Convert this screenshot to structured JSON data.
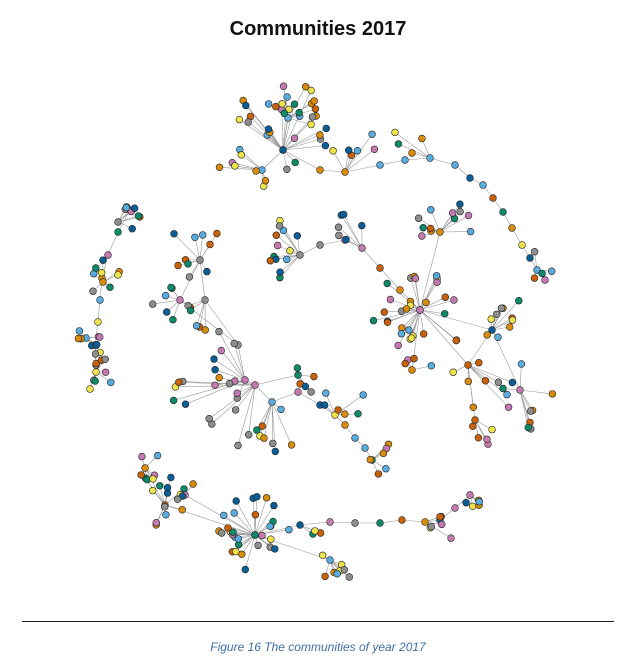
{
  "title": "Communities 2017",
  "caption": "Figure 16 The communities of year 2017",
  "palette": {
    "gold": "#d98c0b",
    "yellow": "#ede34b",
    "green": "#0e8a6a",
    "blue": "#0a5e96",
    "lightblue": "#5aabde",
    "pink": "#c47ab0",
    "gray": "#8e8e8e",
    "orange": "#c8620a",
    "edge": "#9a9a9a",
    "outline": "#222222"
  }
}
